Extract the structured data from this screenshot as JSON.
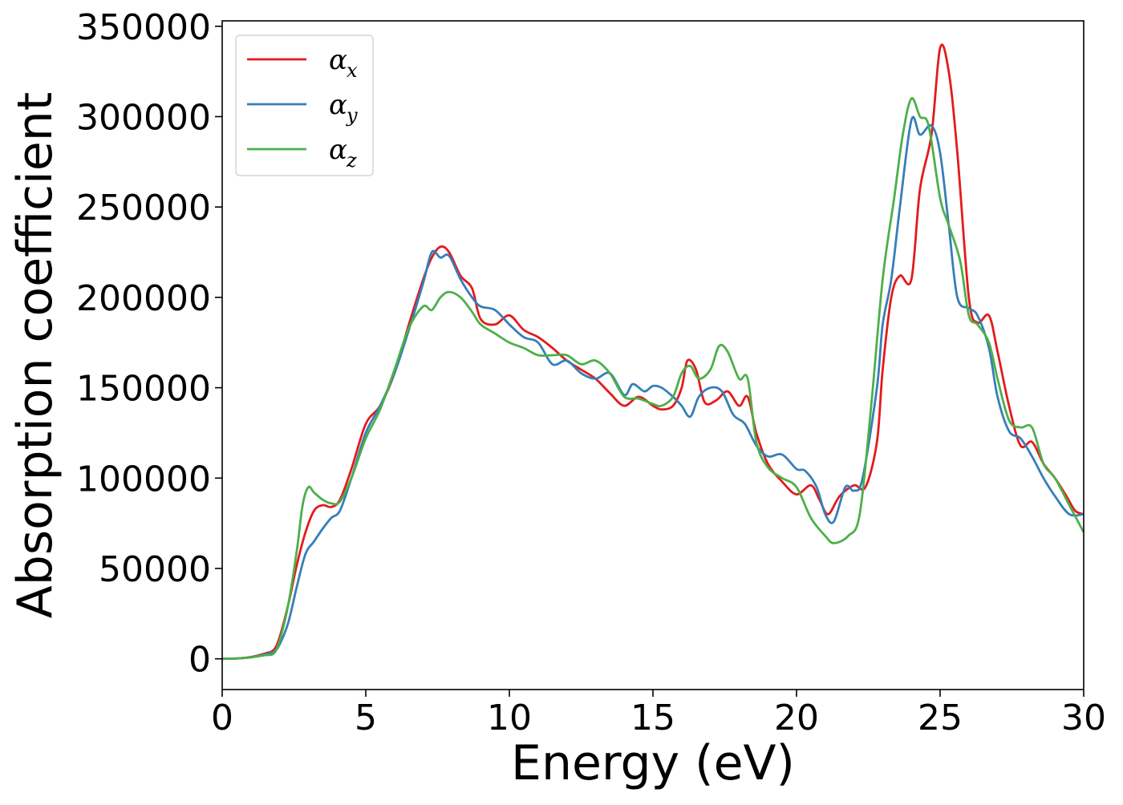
{
  "chart_data": {
    "type": "line",
    "title": "",
    "xlabel": "Energy (eV)",
    "ylabel": "Absorption coefficient",
    "xlim": [
      0,
      30
    ],
    "ylim": [
      -17000,
      353000
    ],
    "xticks": [
      0,
      5,
      10,
      15,
      20,
      25,
      30
    ],
    "yticks": [
      0,
      50000,
      100000,
      150000,
      200000,
      250000,
      300000,
      350000
    ],
    "xtick_labels": [
      "0",
      "5",
      "10",
      "15",
      "20",
      "25",
      "30"
    ],
    "ytick_labels": [
      "0",
      "50000",
      "100000",
      "150000",
      "200000",
      "250000",
      "300000",
      "350000"
    ],
    "grid": false,
    "legend": {
      "position": "top-left"
    },
    "series": [
      {
        "name": "α",
        "subscript": "x",
        "color": "#e41a1c",
        "x": [
          0,
          0.5,
          1.0,
          1.5,
          1.8,
          2.0,
          2.3,
          2.6,
          2.9,
          3.2,
          3.5,
          3.8,
          4.1,
          4.5,
          5.0,
          5.5,
          6.0,
          6.5,
          7.0,
          7.3,
          7.6,
          7.9,
          8.3,
          8.7,
          9.0,
          9.5,
          10.0,
          10.5,
          11.0,
          11.5,
          12.0,
          12.5,
          13.0,
          13.5,
          14.0,
          14.5,
          15.0,
          15.3,
          15.7,
          16.0,
          16.2,
          16.5,
          16.8,
          17.2,
          17.6,
          18.0,
          18.3,
          18.6,
          19.0,
          19.5,
          20.0,
          20.5,
          20.8,
          21.1,
          21.5,
          22.0,
          22.4,
          22.8,
          23.0,
          23.3,
          23.6,
          24.0,
          24.3,
          24.7,
          25.0,
          25.3,
          25.6,
          26.0,
          26.3,
          26.7,
          27.0,
          27.4,
          27.8,
          28.2,
          28.6,
          29.0,
          29.4,
          29.7,
          30.0
        ],
        "y": [
          0,
          200,
          1000,
          3000,
          5000,
          12000,
          30000,
          52000,
          70000,
          82000,
          85000,
          84000,
          88000,
          105000,
          130000,
          140000,
          158000,
          185000,
          210000,
          222000,
          228000,
          225000,
          212000,
          205000,
          188000,
          185000,
          190000,
          182000,
          178000,
          172000,
          165000,
          160000,
          155000,
          147000,
          140000,
          145000,
          140000,
          138000,
          140000,
          150000,
          165000,
          160000,
          142000,
          143000,
          148000,
          140000,
          145000,
          125000,
          108000,
          98000,
          91000,
          96000,
          88000,
          80000,
          90000,
          96000,
          95000,
          120000,
          160000,
          200000,
          212000,
          210000,
          260000,
          290000,
          338000,
          325000,
          280000,
          200000,
          186000,
          190000,
          170000,
          140000,
          118000,
          120000,
          108000,
          100000,
          90000,
          82000,
          80000
        ]
      },
      {
        "name": "α",
        "subscript": "y",
        "color": "#377eb8",
        "x": [
          0,
          0.5,
          1.0,
          1.5,
          1.8,
          2.0,
          2.3,
          2.6,
          2.9,
          3.2,
          3.5,
          3.8,
          4.1,
          4.5,
          5.0,
          5.5,
          6.0,
          6.5,
          7.0,
          7.3,
          7.6,
          7.9,
          8.3,
          8.7,
          9.0,
          9.5,
          10.0,
          10.5,
          11.0,
          11.5,
          12.0,
          12.5,
          13.0,
          13.5,
          14.0,
          14.3,
          14.7,
          15.0,
          15.3,
          15.7,
          16.0,
          16.3,
          16.6,
          17.0,
          17.4,
          17.8,
          18.2,
          18.6,
          19.0,
          19.5,
          20.0,
          20.3,
          20.7,
          21.0,
          21.3,
          21.7,
          22.0,
          22.3,
          22.8,
          23.0,
          23.3,
          23.6,
          24.0,
          24.3,
          24.7,
          25.0,
          25.3,
          25.6,
          26.0,
          26.3,
          26.7,
          27.0,
          27.4,
          27.8,
          28.2,
          28.6,
          29.0,
          29.5,
          30.0
        ],
        "y": [
          0,
          200,
          800,
          2500,
          4000,
          8000,
          20000,
          40000,
          58000,
          65000,
          72000,
          78000,
          82000,
          100000,
          125000,
          140000,
          158000,
          182000,
          208000,
          225000,
          222000,
          223000,
          210000,
          200000,
          195000,
          193000,
          185000,
          178000,
          175000,
          163000,
          165000,
          158000,
          155000,
          158000,
          146000,
          152000,
          148000,
          151000,
          150000,
          145000,
          140000,
          134000,
          145000,
          150000,
          148000,
          135000,
          130000,
          118000,
          112000,
          113000,
          105000,
          104000,
          95000,
          80000,
          76000,
          95000,
          93000,
          100000,
          150000,
          185000,
          210000,
          250000,
          298000,
          290000,
          295000,
          280000,
          240000,
          200000,
          194000,
          190000,
          172000,
          145000,
          126000,
          122000,
          112000,
          100000,
          90000,
          80000,
          80000
        ]
      },
      {
        "name": "α",
        "subscript": "z",
        "color": "#4daf4a",
        "x": [
          0,
          0.5,
          1.0,
          1.5,
          1.8,
          2.0,
          2.3,
          2.6,
          2.8,
          3.0,
          3.2,
          3.5,
          3.8,
          4.1,
          4.5,
          5.0,
          5.5,
          6.0,
          6.5,
          7.0,
          7.3,
          7.6,
          7.9,
          8.3,
          8.7,
          9.0,
          9.5,
          10.0,
          10.5,
          11.0,
          11.5,
          12.0,
          12.5,
          13.0,
          13.5,
          14.0,
          14.5,
          15.0,
          15.3,
          15.7,
          16.0,
          16.3,
          16.6,
          17.0,
          17.3,
          17.6,
          18.0,
          18.3,
          18.6,
          19.0,
          19.5,
          20.0,
          20.5,
          21.0,
          21.3,
          21.8,
          22.2,
          22.6,
          23.0,
          23.4,
          23.7,
          24.0,
          24.3,
          24.6,
          25.0,
          25.3,
          25.7,
          26.0,
          26.3,
          26.7,
          27.0,
          27.4,
          27.8,
          28.2,
          28.6,
          29.0,
          29.5,
          30.0
        ],
        "y": [
          0,
          200,
          800,
          2000,
          3000,
          10000,
          30000,
          60000,
          85000,
          95000,
          92000,
          88000,
          86000,
          87000,
          100000,
          122000,
          138000,
          160000,
          183000,
          195000,
          193000,
          200000,
          203000,
          200000,
          192000,
          185000,
          180000,
          175000,
          172000,
          168000,
          168000,
          168000,
          163000,
          165000,
          158000,
          145000,
          144000,
          141000,
          140000,
          145000,
          158000,
          162000,
          155000,
          160000,
          173000,
          170000,
          155000,
          155000,
          120000,
          106000,
          100000,
          95000,
          78000,
          68000,
          64000,
          68000,
          80000,
          140000,
          210000,
          255000,
          290000,
          310000,
          300000,
          295000,
          255000,
          240000,
          220000,
          190000,
          185000,
          175000,
          155000,
          132000,
          128000,
          128000,
          108000,
          100000,
          85000,
          70000
        ]
      }
    ]
  }
}
